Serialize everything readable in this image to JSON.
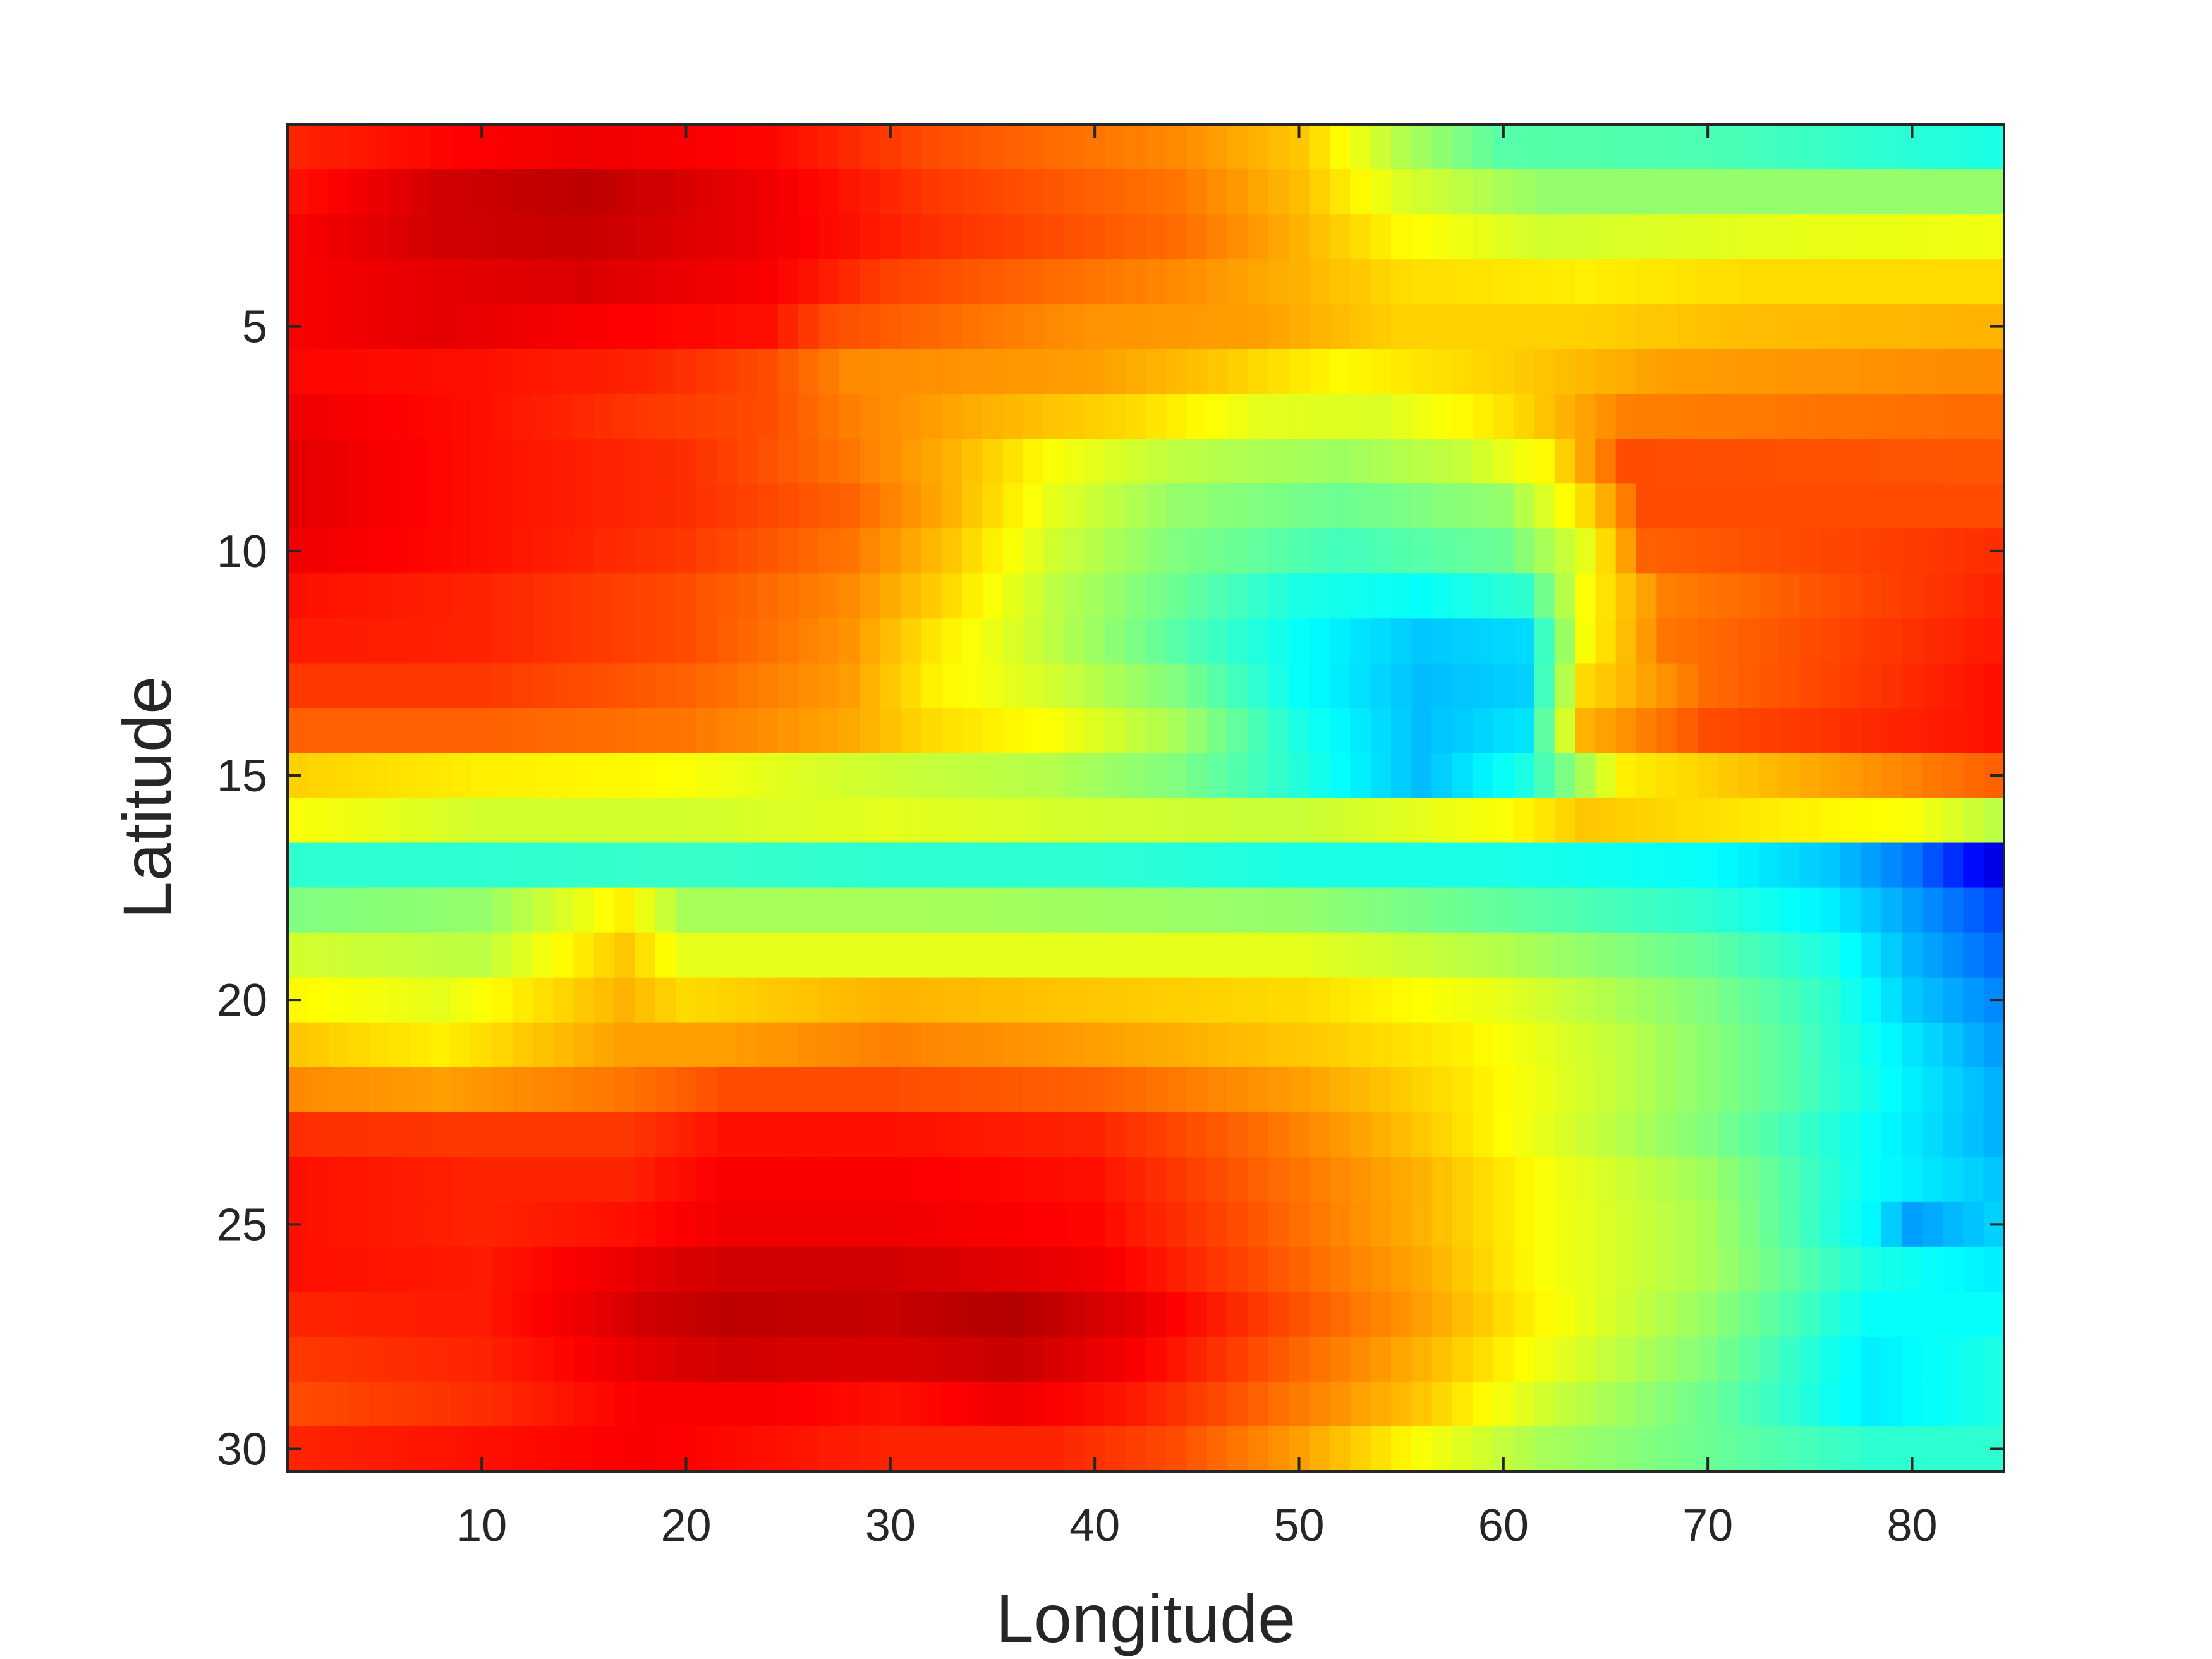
{
  "chart_data": {
    "type": "heatmap",
    "title": "",
    "xlabel": "Longitude",
    "ylabel": "Latitude",
    "xlim": [
      0.5,
      84.5
    ],
    "ylim": [
      0.5,
      30.5
    ],
    "y_direction": "reversed",
    "colormap": "jet",
    "grid": false,
    "legend": "none",
    "x_ticks": [
      10,
      20,
      30,
      40,
      50,
      60,
      70,
      80
    ],
    "x_tick_labels": [
      "10",
      "20",
      "30",
      "40",
      "50",
      "60",
      "70",
      "80"
    ],
    "y_ticks": [
      5,
      10,
      15,
      20,
      25,
      30
    ],
    "y_tick_labels": [
      "5",
      "10",
      "15",
      "20",
      "25",
      "30"
    ],
    "columns": 84,
    "rows": 30,
    "cell_value_range": [
      0,
      1
    ],
    "row_profiles": [
      [
        [
          1,
          0.84
        ],
        [
          8,
          0.87
        ],
        [
          15,
          0.89
        ],
        [
          24,
          0.87
        ],
        [
          32,
          0.8
        ],
        [
          44,
          0.74
        ],
        [
          50,
          0.68
        ],
        [
          55,
          0.55
        ],
        [
          60,
          0.46
        ],
        [
          70,
          0.45
        ],
        [
          84,
          0.4
        ]
      ],
      [
        [
          1,
          0.86
        ],
        [
          8,
          0.92
        ],
        [
          15,
          0.94
        ],
        [
          24,
          0.89
        ],
        [
          32,
          0.82
        ],
        [
          44,
          0.76
        ],
        [
          50,
          0.69
        ],
        [
          55,
          0.59
        ],
        [
          62,
          0.52
        ],
        [
          72,
          0.52
        ],
        [
          84,
          0.52
        ]
      ],
      [
        [
          1,
          0.88
        ],
        [
          8,
          0.92
        ],
        [
          15,
          0.93
        ],
        [
          24,
          0.89
        ],
        [
          32,
          0.83
        ],
        [
          44,
          0.77
        ],
        [
          50,
          0.7
        ],
        [
          55,
          0.63
        ],
        [
          62,
          0.58
        ],
        [
          72,
          0.6
        ],
        [
          84,
          0.61
        ]
      ],
      [
        [
          1,
          0.88
        ],
        [
          8,
          0.9
        ],
        [
          15,
          0.91
        ],
        [
          24,
          0.88
        ],
        [
          30,
          0.81
        ],
        [
          44,
          0.74
        ],
        [
          50,
          0.7
        ],
        [
          55,
          0.66
        ],
        [
          64,
          0.64
        ],
        [
          72,
          0.66
        ],
        [
          84,
          0.66
        ]
      ],
      [
        [
          1,
          0.88
        ],
        [
          8,
          0.9
        ],
        [
          15,
          0.88
        ],
        [
          24,
          0.86
        ],
        [
          27,
          0.8
        ],
        [
          40,
          0.73
        ],
        [
          48,
          0.72
        ],
        [
          55,
          0.67
        ],
        [
          64,
          0.67
        ],
        [
          72,
          0.69
        ],
        [
          84,
          0.7
        ]
      ],
      [
        [
          1,
          0.87
        ],
        [
          10,
          0.86
        ],
        [
          18,
          0.84
        ],
        [
          24,
          0.8
        ],
        [
          28,
          0.74
        ],
        [
          40,
          0.72
        ],
        [
          46,
          0.68
        ],
        [
          52,
          0.63
        ],
        [
          60,
          0.67
        ],
        [
          68,
          0.72
        ],
        [
          84,
          0.74
        ]
      ],
      [
        [
          1,
          0.89
        ],
        [
          10,
          0.86
        ],
        [
          18,
          0.82
        ],
        [
          24,
          0.8
        ],
        [
          28,
          0.75
        ],
        [
          35,
          0.7
        ],
        [
          42,
          0.66
        ],
        [
          48,
          0.6
        ],
        [
          54,
          0.59
        ],
        [
          60,
          0.65
        ],
        [
          66,
          0.75
        ],
        [
          84,
          0.77
        ]
      ],
      [
        [
          1,
          0.9
        ],
        [
          10,
          0.86
        ],
        [
          20,
          0.83
        ],
        [
          28,
          0.76
        ],
        [
          33,
          0.7
        ],
        [
          38,
          0.62
        ],
        [
          44,
          0.56
        ],
        [
          52,
          0.53
        ],
        [
          58,
          0.57
        ],
        [
          62,
          0.63
        ],
        [
          66,
          0.8
        ],
        [
          84,
          0.79
        ]
      ],
      [
        [
          1,
          0.9
        ],
        [
          10,
          0.86
        ],
        [
          20,
          0.83
        ],
        [
          28,
          0.78
        ],
        [
          33,
          0.7
        ],
        [
          38,
          0.6
        ],
        [
          44,
          0.52
        ],
        [
          52,
          0.48
        ],
        [
          60,
          0.52
        ],
        [
          64,
          0.66
        ],
        [
          67,
          0.8
        ],
        [
          84,
          0.8
        ]
      ],
      [
        [
          1,
          0.89
        ],
        [
          10,
          0.86
        ],
        [
          20,
          0.82
        ],
        [
          28,
          0.76
        ],
        [
          33,
          0.68
        ],
        [
          38,
          0.58
        ],
        [
          44,
          0.5
        ],
        [
          52,
          0.44
        ],
        [
          60,
          0.48
        ],
        [
          64,
          0.6
        ],
        [
          67,
          0.78
        ],
        [
          84,
          0.83
        ]
      ],
      [
        [
          1,
          0.86
        ],
        [
          10,
          0.84
        ],
        [
          20,
          0.8
        ],
        [
          28,
          0.74
        ],
        [
          33,
          0.66
        ],
        [
          38,
          0.56
        ],
        [
          44,
          0.48
        ],
        [
          50,
          0.4
        ],
        [
          56,
          0.38
        ],
        [
          61,
          0.42
        ],
        [
          64,
          0.62
        ],
        [
          68,
          0.75
        ],
        [
          84,
          0.84
        ]
      ],
      [
        [
          1,
          0.85
        ],
        [
          10,
          0.84
        ],
        [
          20,
          0.8
        ],
        [
          28,
          0.73
        ],
        [
          32,
          0.65
        ],
        [
          38,
          0.56
        ],
        [
          44,
          0.46
        ],
        [
          50,
          0.38
        ],
        [
          56,
          0.32
        ],
        [
          61,
          0.34
        ],
        [
          64,
          0.62
        ],
        [
          68,
          0.76
        ],
        [
          84,
          0.85
        ]
      ],
      [
        [
          1,
          0.82
        ],
        [
          10,
          0.82
        ],
        [
          20,
          0.78
        ],
        [
          28,
          0.72
        ],
        [
          32,
          0.64
        ],
        [
          38,
          0.58
        ],
        [
          44,
          0.5
        ],
        [
          50,
          0.38
        ],
        [
          56,
          0.31
        ],
        [
          61,
          0.33
        ],
        [
          64,
          0.66
        ],
        [
          70,
          0.77
        ],
        [
          84,
          0.86
        ]
      ],
      [
        [
          1,
          0.78
        ],
        [
          10,
          0.78
        ],
        [
          20,
          0.76
        ],
        [
          28,
          0.71
        ],
        [
          32,
          0.66
        ],
        [
          38,
          0.62
        ],
        [
          44,
          0.54
        ],
        [
          50,
          0.4
        ],
        [
          56,
          0.31
        ],
        [
          61,
          0.35
        ],
        [
          64,
          0.7
        ],
        [
          70,
          0.8
        ],
        [
          84,
          0.86
        ]
      ],
      [
        [
          1,
          0.67
        ],
        [
          10,
          0.64
        ],
        [
          18,
          0.63
        ],
        [
          28,
          0.58
        ],
        [
          38,
          0.55
        ],
        [
          44,
          0.5
        ],
        [
          50,
          0.41
        ],
        [
          56,
          0.31
        ],
        [
          61,
          0.4
        ],
        [
          66,
          0.64
        ],
        [
          74,
          0.7
        ],
        [
          84,
          0.78
        ]
      ],
      [
        [
          1,
          0.62
        ],
        [
          10,
          0.58
        ],
        [
          20,
          0.58
        ],
        [
          30,
          0.6
        ],
        [
          40,
          0.58
        ],
        [
          50,
          0.57
        ],
        [
          60,
          0.62
        ],
        [
          64,
          0.68
        ],
        [
          74,
          0.64
        ],
        [
          80,
          0.62
        ],
        [
          84,
          0.56
        ]
      ],
      [
        [
          1,
          0.42
        ],
        [
          10,
          0.42
        ],
        [
          20,
          0.43
        ],
        [
          30,
          0.42
        ],
        [
          40,
          0.42
        ],
        [
          50,
          0.4
        ],
        [
          60,
          0.4
        ],
        [
          70,
          0.38
        ],
        [
          76,
          0.32
        ],
        [
          80,
          0.24
        ],
        [
          84,
          0.1
        ]
      ],
      [
        [
          1,
          0.5
        ],
        [
          10,
          0.52
        ],
        [
          17,
          0.64
        ],
        [
          20,
          0.54
        ],
        [
          30,
          0.54
        ],
        [
          40,
          0.53
        ],
        [
          50,
          0.52
        ],
        [
          60,
          0.47
        ],
        [
          70,
          0.42
        ],
        [
          76,
          0.36
        ],
        [
          80,
          0.28
        ],
        [
          84,
          0.2
        ]
      ],
      [
        [
          1,
          0.58
        ],
        [
          10,
          0.56
        ],
        [
          17,
          0.68
        ],
        [
          20,
          0.6
        ],
        [
          30,
          0.6
        ],
        [
          40,
          0.6
        ],
        [
          50,
          0.6
        ],
        [
          60,
          0.55
        ],
        [
          70,
          0.47
        ],
        [
          76,
          0.4
        ],
        [
          80,
          0.3
        ],
        [
          84,
          0.23
        ]
      ],
      [
        [
          1,
          0.63
        ],
        [
          8,
          0.6
        ],
        [
          17,
          0.7
        ],
        [
          20,
          0.66
        ],
        [
          30,
          0.7
        ],
        [
          40,
          0.68
        ],
        [
          50,
          0.66
        ],
        [
          60,
          0.6
        ],
        [
          70,
          0.5
        ],
        [
          76,
          0.42
        ],
        [
          80,
          0.32
        ],
        [
          84,
          0.26
        ]
      ],
      [
        [
          1,
          0.68
        ],
        [
          8,
          0.64
        ],
        [
          17,
          0.72
        ],
        [
          22,
          0.72
        ],
        [
          30,
          0.75
        ],
        [
          40,
          0.72
        ],
        [
          50,
          0.68
        ],
        [
          58,
          0.64
        ],
        [
          66,
          0.56
        ],
        [
          74,
          0.46
        ],
        [
          80,
          0.35
        ],
        [
          84,
          0.28
        ]
      ],
      [
        [
          1,
          0.74
        ],
        [
          8,
          0.72
        ],
        [
          17,
          0.76
        ],
        [
          22,
          0.8
        ],
        [
          30,
          0.8
        ],
        [
          40,
          0.78
        ],
        [
          50,
          0.72
        ],
        [
          58,
          0.65
        ],
        [
          66,
          0.56
        ],
        [
          74,
          0.46
        ],
        [
          80,
          0.36
        ],
        [
          84,
          0.3
        ]
      ],
      [
        [
          1,
          0.83
        ],
        [
          10,
          0.82
        ],
        [
          17,
          0.82
        ],
        [
          22,
          0.86
        ],
        [
          30,
          0.86
        ],
        [
          40,
          0.84
        ],
        [
          48,
          0.77
        ],
        [
          56,
          0.68
        ],
        [
          62,
          0.6
        ],
        [
          70,
          0.5
        ],
        [
          78,
          0.38
        ],
        [
          84,
          0.3
        ]
      ],
      [
        [
          1,
          0.86
        ],
        [
          10,
          0.84
        ],
        [
          17,
          0.84
        ],
        [
          22,
          0.88
        ],
        [
          30,
          0.88
        ],
        [
          40,
          0.86
        ],
        [
          48,
          0.78
        ],
        [
          56,
          0.7
        ],
        [
          62,
          0.62
        ],
        [
          70,
          0.53
        ],
        [
          78,
          0.38
        ],
        [
          84,
          0.32
        ]
      ],
      [
        [
          1,
          0.86
        ],
        [
          10,
          0.84
        ],
        [
          17,
          0.86
        ],
        [
          22,
          0.89
        ],
        [
          30,
          0.89
        ],
        [
          40,
          0.87
        ],
        [
          48,
          0.79
        ],
        [
          56,
          0.7
        ],
        [
          62,
          0.62
        ],
        [
          70,
          0.54
        ],
        [
          78,
          0.37
        ],
        [
          80,
          0.28
        ],
        [
          84,
          0.33
        ]
      ],
      [
        [
          1,
          0.86
        ],
        [
          10,
          0.85
        ],
        [
          18,
          0.9
        ],
        [
          22,
          0.92
        ],
        [
          30,
          0.92
        ],
        [
          40,
          0.89
        ],
        [
          48,
          0.8
        ],
        [
          56,
          0.71
        ],
        [
          62,
          0.62
        ],
        [
          70,
          0.54
        ],
        [
          78,
          0.4
        ],
        [
          84,
          0.36
        ]
      ],
      [
        [
          1,
          0.84
        ],
        [
          10,
          0.85
        ],
        [
          18,
          0.92
        ],
        [
          22,
          0.94
        ],
        [
          30,
          0.93
        ],
        [
          36,
          0.95
        ],
        [
          42,
          0.9
        ],
        [
          48,
          0.82
        ],
        [
          56,
          0.72
        ],
        [
          62,
          0.63
        ],
        [
          70,
          0.52
        ],
        [
          78,
          0.38
        ],
        [
          84,
          0.38
        ]
      ],
      [
        [
          1,
          0.82
        ],
        [
          10,
          0.84
        ],
        [
          18,
          0.9
        ],
        [
          22,
          0.92
        ],
        [
          30,
          0.91
        ],
        [
          36,
          0.93
        ],
        [
          42,
          0.88
        ],
        [
          48,
          0.8
        ],
        [
          56,
          0.7
        ],
        [
          62,
          0.61
        ],
        [
          70,
          0.5
        ],
        [
          78,
          0.36
        ],
        [
          84,
          0.4
        ]
      ],
      [
        [
          1,
          0.8
        ],
        [
          10,
          0.83
        ],
        [
          18,
          0.88
        ],
        [
          24,
          0.88
        ],
        [
          30,
          0.86
        ],
        [
          36,
          0.89
        ],
        [
          42,
          0.85
        ],
        [
          48,
          0.78
        ],
        [
          56,
          0.68
        ],
        [
          62,
          0.58
        ],
        [
          70,
          0.48
        ],
        [
          78,
          0.36
        ],
        [
          84,
          0.4
        ]
      ],
      [
        [
          1,
          0.84
        ],
        [
          10,
          0.86
        ],
        [
          18,
          0.88
        ],
        [
          24,
          0.86
        ],
        [
          30,
          0.84
        ],
        [
          38,
          0.84
        ],
        [
          44,
          0.8
        ],
        [
          50,
          0.72
        ],
        [
          56,
          0.62
        ],
        [
          62,
          0.54
        ],
        [
          70,
          0.48
        ],
        [
          78,
          0.42
        ],
        [
          84,
          0.42
        ]
      ]
    ]
  }
}
